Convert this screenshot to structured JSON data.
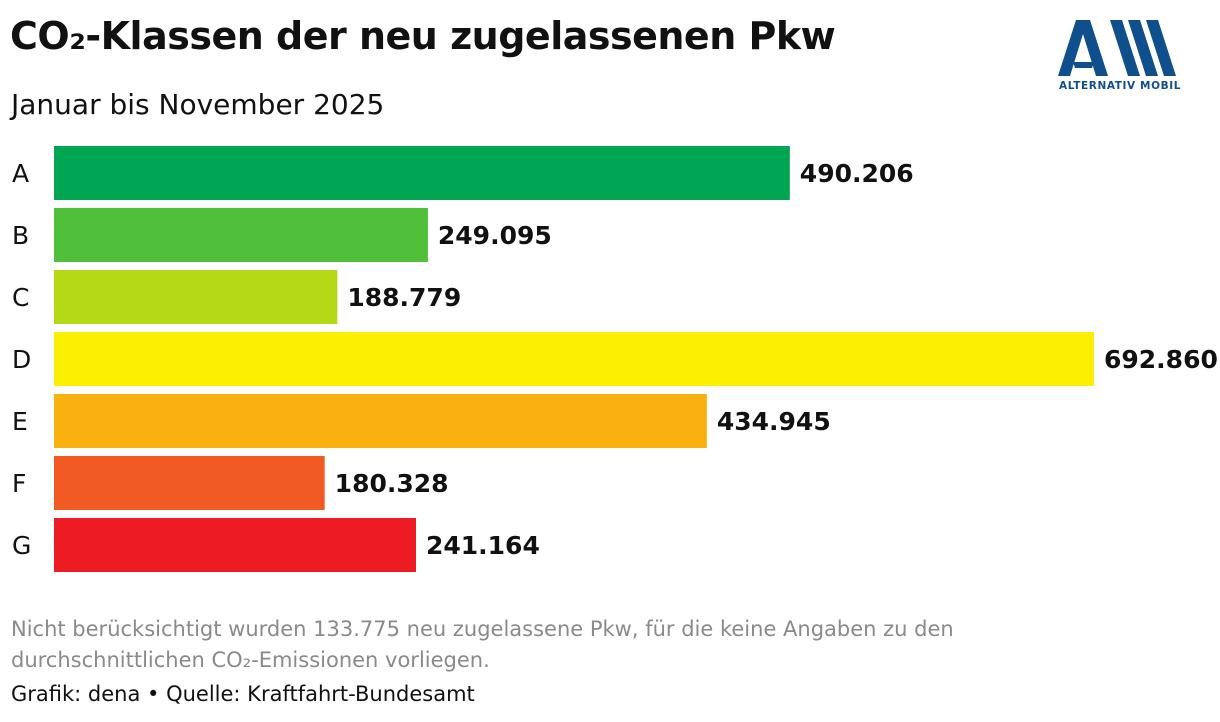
{
  "header": {
    "title": "CO₂-Klassen der neu zugelassenen Pkw",
    "subtitle": "Januar bis November 2025"
  },
  "logo": {
    "text": "ALTERNATIV MOBIL",
    "color": "#0f4f8c",
    "icon": "am-logo-icon"
  },
  "chart_data": {
    "type": "bar",
    "orientation": "horizontal",
    "title": "CO₂-Klassen der neu zugelassenen Pkw",
    "subtitle": "Januar bis November 2025",
    "categories": [
      "A",
      "B",
      "C",
      "D",
      "E",
      "F",
      "G"
    ],
    "values": [
      490206,
      249095,
      188779,
      692860,
      434945,
      180328,
      241164
    ],
    "value_labels": [
      "490.206",
      "249.095",
      "188.779",
      "692.860",
      "434.945",
      "180.328",
      "241.164"
    ],
    "colors": [
      "#00a651",
      "#50bf39",
      "#b5d916",
      "#fcef02",
      "#f9b10f",
      "#f15a22",
      "#ed1c24"
    ],
    "xlim": [
      0,
      692860
    ],
    "grid": false,
    "legend": "none"
  },
  "footer": {
    "note": "Nicht berücksichtigt wurden 133.775 neu zugelassene Pkw, für die keine Angaben zu den durchschnittlichen CO₂-Emissionen vorliegen.",
    "credit": "Grafik: dena • Quelle: Kraftfahrt-Bundesamt"
  }
}
